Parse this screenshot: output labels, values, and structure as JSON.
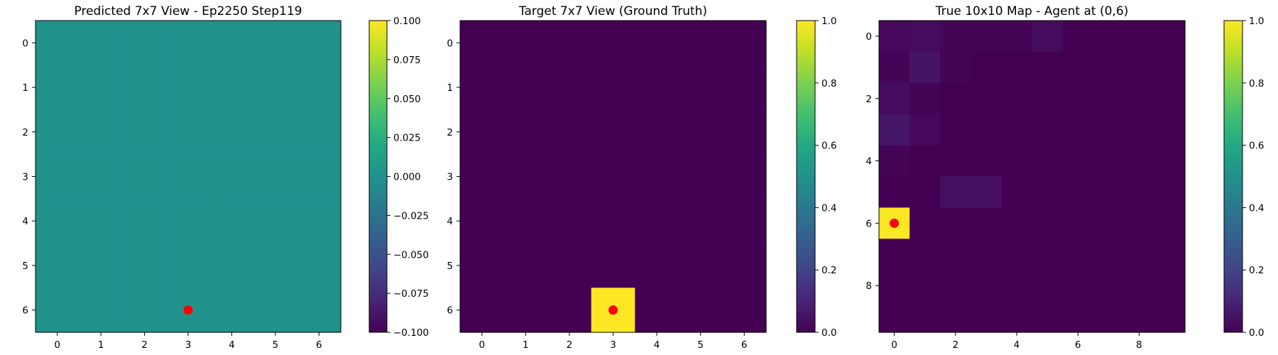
{
  "chart_data": [
    {
      "type": "heatmap",
      "title": "Predicted 7x7 View - Ep2250 Step119",
      "rows": 7,
      "cols": 7,
      "xticks": [
        0,
        1,
        2,
        3,
        4,
        5,
        6
      ],
      "yticks": [
        0,
        1,
        2,
        3,
        4,
        5,
        6
      ],
      "xlim": [
        -0.5,
        6.5
      ],
      "ylim": [
        6.5,
        -0.5
      ],
      "values": [
        [
          0,
          0,
          0,
          0,
          0,
          0,
          0
        ],
        [
          0,
          0,
          0,
          0,
          0,
          0,
          0
        ],
        [
          0,
          0,
          0,
          0,
          0,
          0,
          0
        ],
        [
          0,
          0,
          0,
          0,
          0,
          0,
          0
        ],
        [
          0,
          0,
          0,
          0,
          0,
          0,
          0
        ],
        [
          0,
          0,
          0,
          0,
          0,
          0,
          0
        ],
        [
          0,
          0,
          0,
          0,
          0,
          0,
          0
        ]
      ],
      "vmin": -0.1,
      "vmax": 0.1,
      "colormap": "viridis",
      "colorbar_ticks": [
        0.1,
        0.075,
        0.05,
        0.025,
        0.0,
        -0.025,
        -0.05,
        -0.075,
        -0.1
      ],
      "colorbar_tick_labels": [
        "0.100",
        "0.075",
        "0.050",
        "0.025",
        "0.000",
        "−0.025",
        "−0.050",
        "−0.075",
        "−0.100"
      ],
      "marker": {
        "x": 3,
        "y": 6,
        "color": "#ff0000"
      }
    },
    {
      "type": "heatmap",
      "title": "Target 7x7 View (Ground Truth)",
      "rows": 7,
      "cols": 7,
      "xticks": [
        0,
        1,
        2,
        3,
        4,
        5,
        6
      ],
      "yticks": [
        0,
        1,
        2,
        3,
        4,
        5,
        6
      ],
      "xlim": [
        -0.5,
        6.5
      ],
      "ylim": [
        6.5,
        -0.5
      ],
      "values": [
        [
          0,
          0,
          0,
          0,
          0,
          0,
          0
        ],
        [
          0,
          0,
          0,
          0,
          0,
          0,
          0
        ],
        [
          0,
          0,
          0,
          0,
          0,
          0,
          0
        ],
        [
          0,
          0,
          0,
          0,
          0,
          0,
          0
        ],
        [
          0,
          0,
          0,
          0,
          0,
          0,
          0
        ],
        [
          0,
          0,
          0,
          0,
          0,
          0,
          0
        ],
        [
          0,
          0,
          0,
          1,
          0,
          0,
          0
        ]
      ],
      "vmin": 0.0,
      "vmax": 1.0,
      "colormap": "viridis",
      "colorbar_ticks": [
        1.0,
        0.8,
        0.6,
        0.4,
        0.2,
        0.0
      ],
      "colorbar_tick_labels": [
        "1.0",
        "0.8",
        "0.6",
        "0.4",
        "0.2",
        "0.0"
      ],
      "marker": {
        "x": 3,
        "y": 6,
        "color": "#ff0000"
      }
    },
    {
      "type": "heatmap",
      "title": "True 10x10 Map - Agent at (0,6)",
      "rows": 10,
      "cols": 10,
      "xticks": [
        0,
        2,
        4,
        6,
        8
      ],
      "yticks": [
        0,
        2,
        4,
        6,
        8
      ],
      "xlim": [
        -0.5,
        9.5
      ],
      "ylim": [
        9.5,
        -0.5
      ],
      "values": [
        [
          0.02,
          0.03,
          0.01,
          0.01,
          0.01,
          0.03,
          0.0,
          0.0,
          0.0,
          0.0
        ],
        [
          0.01,
          0.05,
          0.01,
          0.0,
          0.0,
          0.0,
          0.0,
          0.0,
          0.0,
          0.0
        ],
        [
          0.03,
          0.01,
          0.0,
          0.0,
          0.0,
          0.0,
          0.0,
          0.0,
          0.0,
          0.0
        ],
        [
          0.06,
          0.02,
          0.0,
          0.0,
          0.0,
          0.0,
          0.0,
          0.0,
          0.0,
          0.0
        ],
        [
          0.01,
          0.0,
          0.0,
          0.0,
          0.0,
          0.0,
          0.0,
          0.0,
          0.0,
          0.0
        ],
        [
          0.0,
          0.0,
          0.04,
          0.04,
          0.0,
          0.0,
          0.0,
          0.0,
          0.0,
          0.0
        ],
        [
          1.0,
          0.0,
          0.0,
          0.0,
          0.0,
          0.0,
          0.0,
          0.0,
          0.0,
          0.0
        ],
        [
          0.0,
          0.0,
          0.0,
          0.0,
          0.0,
          0.0,
          0.0,
          0.0,
          0.0,
          0.0
        ],
        [
          0.0,
          0.0,
          0.0,
          0.0,
          0.0,
          0.0,
          0.0,
          0.0,
          0.0,
          0.0
        ],
        [
          0.0,
          0.0,
          0.0,
          0.0,
          0.0,
          0.0,
          0.0,
          0.0,
          0.0,
          0.0
        ]
      ],
      "vmin": 0.0,
      "vmax": 1.0,
      "colormap": "viridis",
      "colorbar_ticks": [
        1.0,
        0.8,
        0.6,
        0.4,
        0.2,
        0.0
      ],
      "colorbar_tick_labels": [
        "1.0",
        "0.8",
        "0.6",
        "0.4",
        "0.2",
        "0.0"
      ],
      "marker": {
        "x": 0,
        "y": 6,
        "color": "#ff0000"
      }
    }
  ]
}
